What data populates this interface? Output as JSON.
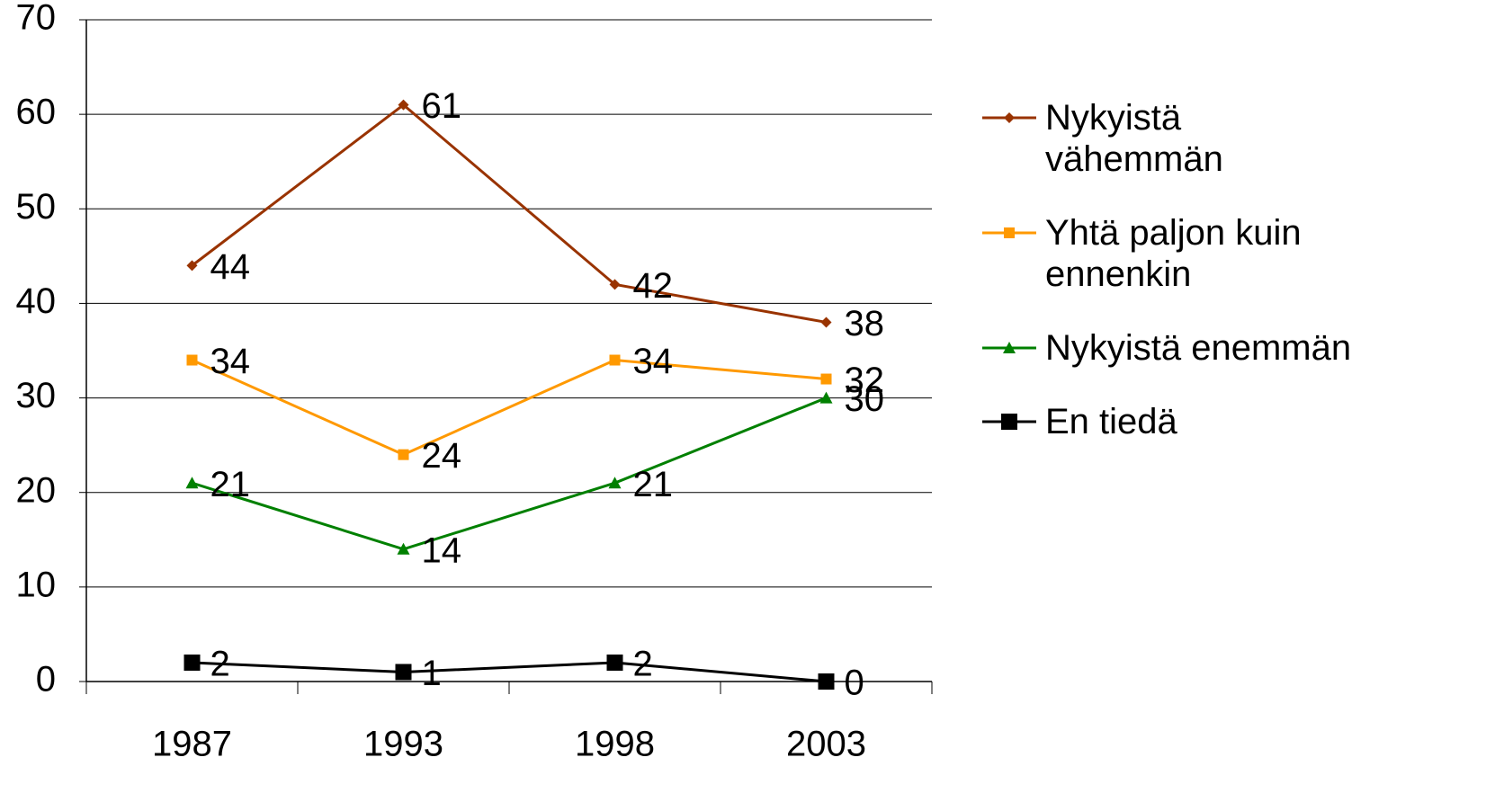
{
  "chart_data": {
    "type": "line",
    "categories": [
      "1987",
      "1993",
      "1998",
      "2003"
    ],
    "series": [
      {
        "name": "Nykyistä vähemmän",
        "color": "#993300",
        "marker": "diamond",
        "values": [
          44,
          61,
          42,
          38
        ]
      },
      {
        "name": "Yhtä paljon kuin ennenkin",
        "color": "#ff9900",
        "marker": "square",
        "values": [
          34,
          24,
          34,
          32
        ]
      },
      {
        "name": "Nykyistä enemmän",
        "color": "#008000",
        "marker": "triangle",
        "values": [
          21,
          14,
          21,
          30
        ]
      },
      {
        "name": "En tiedä",
        "color": "#000000",
        "marker": "bigsquare",
        "values": [
          2,
          1,
          2,
          0
        ]
      }
    ],
    "ylim": [
      0,
      70
    ],
    "yticks": [
      0,
      10,
      20,
      30,
      40,
      50,
      60,
      70
    ],
    "grid": true,
    "legend": "right"
  }
}
